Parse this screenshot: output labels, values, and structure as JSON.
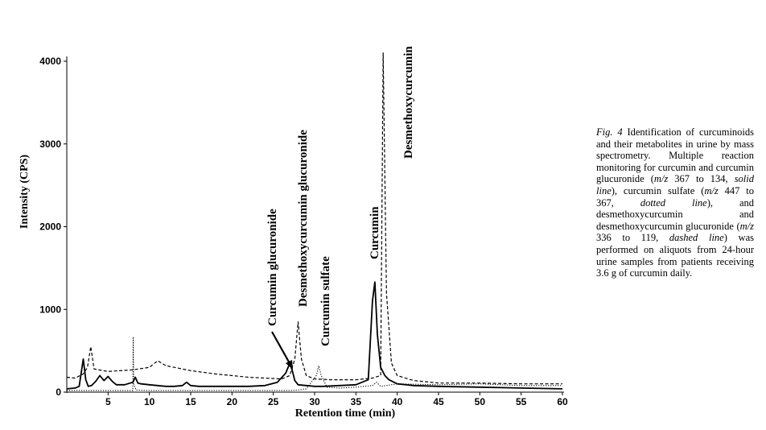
{
  "chart_data": {
    "type": "line",
    "xlabel": "Retention time (min)",
    "ylabel": "Intensity (CPS)",
    "xlim": [
      0,
      60
    ],
    "ylim": [
      0,
      4000
    ],
    "xticks": [
      5,
      10,
      15,
      20,
      25,
      30,
      35,
      40,
      45,
      50,
      55,
      60
    ],
    "yticks": [
      0,
      1000,
      2000,
      3000,
      4000
    ],
    "grid": false,
    "series": [
      {
        "style": "solid",
        "x": [
          0,
          1,
          1.5,
          2.0,
          2.3,
          2.6,
          3,
          3.5,
          4.0,
          4.5,
          5.0,
          5.5,
          6,
          7,
          8.0,
          8.3,
          8.6,
          9,
          10,
          11,
          12,
          13,
          14,
          14.5,
          15,
          16,
          18,
          20,
          22,
          24,
          25.5,
          26.5,
          27.0,
          27.3,
          27.6,
          28,
          29,
          30,
          31,
          33,
          35,
          36.5,
          37.0,
          37.3,
          37.6,
          38,
          38.5,
          39,
          40,
          42,
          45,
          50,
          55,
          60
        ],
        "y": [
          40,
          50,
          70,
          400,
          150,
          70,
          80,
          130,
          200,
          140,
          190,
          130,
          90,
          90,
          120,
          180,
          110,
          100,
          90,
          80,
          70,
          70,
          80,
          120,
          80,
          70,
          70,
          70,
          70,
          80,
          120,
          230,
          350,
          260,
          140,
          90,
          80,
          70,
          70,
          80,
          90,
          150,
          1100,
          1330,
          700,
          300,
          200,
          150,
          100,
          80,
          70,
          60,
          50,
          40
        ]
      },
      {
        "style": "dotted",
        "x": [
          0,
          2,
          5,
          8.0,
          8.05,
          8.1,
          8.4,
          10,
          15,
          20,
          25,
          27,
          28,
          29,
          30.2,
          30.5,
          30.8,
          31.5,
          33,
          35,
          37,
          37.5,
          38,
          40,
          45,
          50,
          55,
          60
        ],
        "y": [
          20,
          20,
          20,
          20,
          670,
          100,
          25,
          20,
          20,
          20,
          20,
          20,
          25,
          40,
          200,
          320,
          200,
          60,
          50,
          60,
          80,
          120,
          70,
          100,
          90,
          100,
          80,
          80
        ]
      },
      {
        "style": "dashed",
        "x": [
          0,
          1,
          2,
          2.5,
          2.9,
          3.3,
          5,
          8,
          10,
          11,
          12,
          15,
          18,
          20,
          22,
          24,
          26,
          27,
          27.6,
          28.0,
          28.4,
          29,
          30,
          32,
          35,
          37,
          38.0,
          38.3,
          38.7,
          39.3,
          40,
          42,
          45,
          50,
          55,
          60
        ],
        "y": [
          180,
          170,
          220,
          300,
          550,
          280,
          250,
          270,
          300,
          380,
          320,
          260,
          220,
          200,
          180,
          170,
          160,
          200,
          400,
          850,
          400,
          200,
          160,
          150,
          150,
          170,
          200,
          4100,
          1200,
          350,
          200,
          140,
          110,
          110,
          100,
          100
        ]
      }
    ],
    "annotations": [
      "Curcumin glucuronide",
      "Desmethoxycurcumin glucuronide",
      "Curcumin sulfate",
      "Curcumin",
      "Desmethoxycurcumin"
    ]
  },
  "caption": {
    "fig_label": "Fig. 4",
    "t1": " Identification of curcuminoids and their metabolites in urine by mass spectrometry. Multiple reaction monitoring for curcumin and curcumin glucuronide (",
    "mz1": "m/z",
    "t2": " 367 to 134, ",
    "solid": "solid line",
    "t3": "), curcumin sulfate (",
    "mz2": "m/z",
    "t4": " 447 to 367, ",
    "dotted": "dotted line",
    "t5": "), and desmethoxycurcumin and desmethoxycurcumin glucuronide (",
    "mz3": "m/z",
    "t6": " 336 to 119, ",
    "dashed": "dashed line",
    "t7": ") was performed on aliquots from 24-hour urine samples from patients receiving 3.6 g of curcumin daily."
  }
}
